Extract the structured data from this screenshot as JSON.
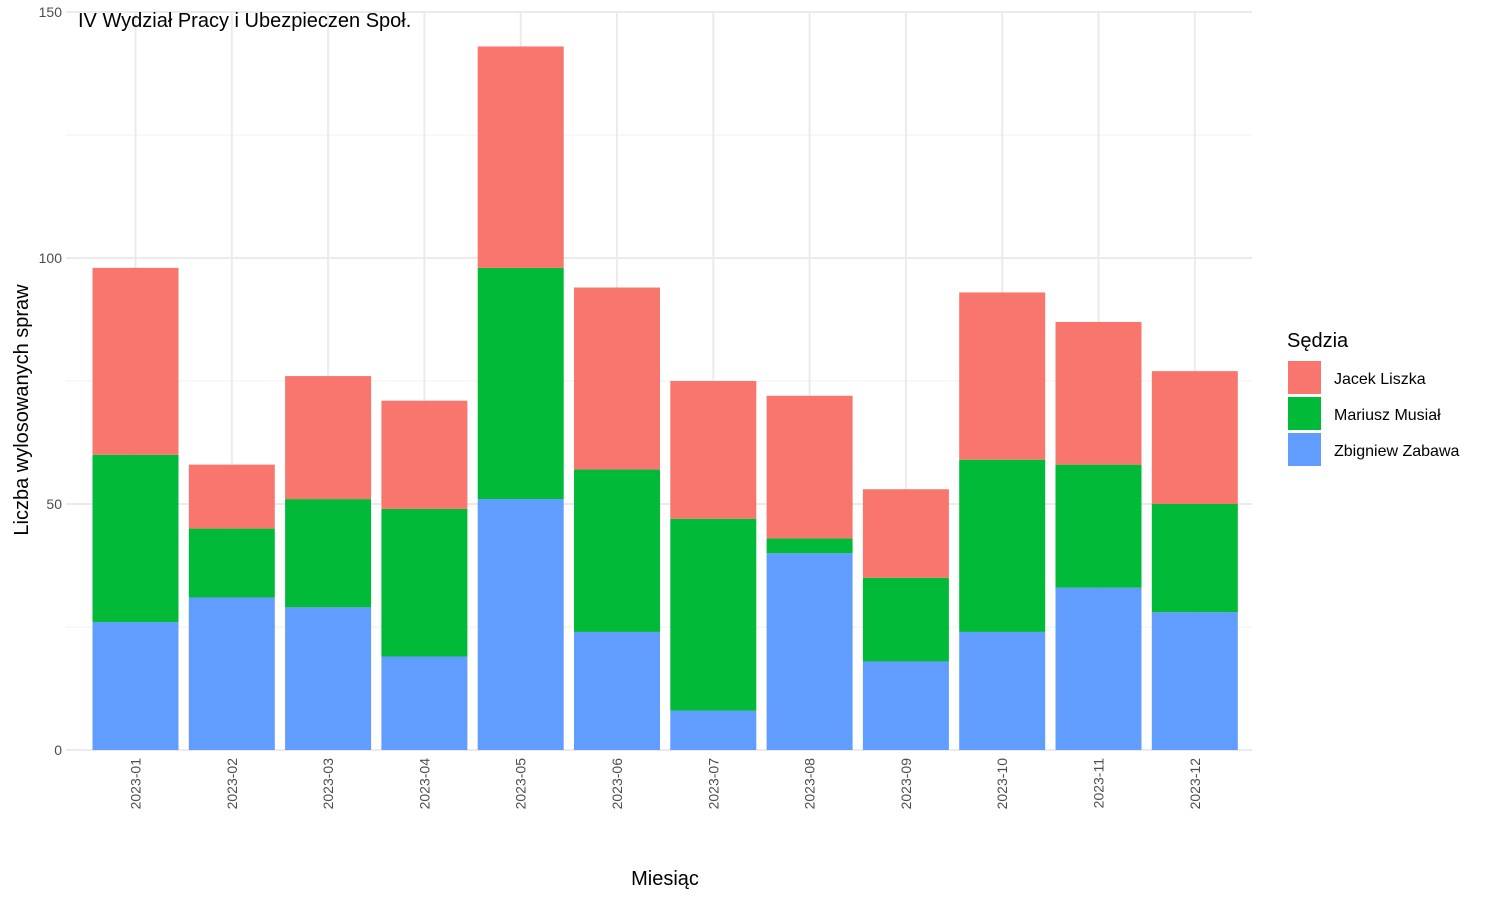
{
  "chart_data": {
    "type": "bar",
    "stacked": true,
    "annotation": "IV Wydział Pracy i Ubezpieczen Społ.",
    "xlabel": "Miesiąc",
    "ylabel": "Liczba wylosowanych spraw",
    "ylim": [
      0,
      150
    ],
    "yticks": [
      "0",
      "50",
      "100",
      "150"
    ],
    "grid": true,
    "legend": {
      "title": "Sędzia",
      "position": "right"
    },
    "categories": [
      "2023-01",
      "2023-02",
      "2023-03",
      "2023-04",
      "2023-05",
      "2023-06",
      "2023-07",
      "2023-08",
      "2023-09",
      "2023-10",
      "2023-11",
      "2023-12"
    ],
    "series": [
      {
        "name": "Zbigniew Zabawa",
        "color": "#619CFF",
        "values": [
          26,
          31,
          29,
          19,
          51,
          24,
          8,
          40,
          18,
          24,
          33,
          28
        ]
      },
      {
        "name": "Mariusz Musiał",
        "color": "#00BA38",
        "values": [
          34,
          14,
          22,
          30,
          47,
          33,
          39,
          3,
          17,
          35,
          25,
          22
        ]
      },
      {
        "name": "Jacek Liszka",
        "color": "#F8766D",
        "values": [
          38,
          13,
          25,
          22,
          45,
          37,
          28,
          29,
          18,
          34,
          29,
          27
        ]
      }
    ]
  }
}
